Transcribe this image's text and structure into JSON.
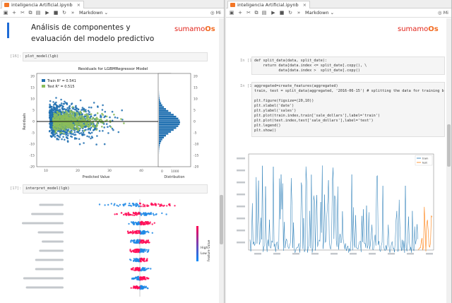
{
  "left_pane": {
    "tab": {
      "title": "inteligencia Artificial.ipynb",
      "close": "×"
    },
    "toolbar": {
      "cell_type": "Markdown",
      "kernel": "Mi"
    },
    "heading": "Análisis de componentes y evaluación del modelo predictivo",
    "logo": {
      "text": "sumamo",
      "highlight": "Os"
    },
    "cells": [
      {
        "prompt": "[16]:",
        "code": "plot_model(lgb)"
      },
      {
        "prompt": "[17]:",
        "code": "interpret_model(lgb)"
      }
    ],
    "residual_plot": {
      "title": "Residuals for LGBMRegressor Model",
      "legend": [
        {
          "label": "Train R² = 0.541",
          "color": "#1f6fb0"
        },
        {
          "label": "Test R² = 0.515",
          "color": "#8bbd5b"
        }
      ],
      "xlabel": "Predicted Value",
      "ylabel": "Residuals",
      "y_ticks": [
        "20",
        "15",
        "10",
        "5",
        "0",
        "-5",
        "-10",
        "-15",
        "-20"
      ],
      "x_ticks": [
        "10",
        "20",
        "30",
        "40"
      ],
      "dist_label": "Distribution",
      "dist_ticks": [
        "0",
        "1000"
      ]
    },
    "shap_plot": {
      "colorbar_high": "High",
      "colorbar_low": "Low",
      "colorbar_label": "Feature value",
      "rows": 10
    }
  },
  "right_pane": {
    "tab": {
      "title": "inteligencia Artificial.ipynb",
      "close": "×"
    },
    "toolbar": {
      "cell_type": "Markdown",
      "kernel": "Mi"
    },
    "logo": {
      "text": "sumamo",
      "highlight": "Os"
    },
    "cells": [
      {
        "prompt": "In [12]:",
        "code": "def split_data(data, split_date):\n    return data[data.index <= split_date].copy(), \\\n           data[data.index >  split_date].copy()"
      },
      {
        "prompt": "In [13]:",
        "code": "aggregated=create_features(aggregated)\ntrain, test = split_data(aggregated, '2016-06-15') # splitting the data for training before\n\nplt.figure(figsize=(20,10))\nplt.xlabel('date')\nplt.ylabel('sales')\nplt.plot(train.index,train['sale_dollars'],label='train')\nplt.plot(test.index,test['sale_dollars'],label='test')\nplt.legend()\nplt.show()"
      }
    ],
    "chart": {
      "legend": [
        {
          "label": "train",
          "color": "#1f77b4"
        },
        {
          "label": "test",
          "color": "#ff7f0e"
        }
      ]
    }
  }
}
